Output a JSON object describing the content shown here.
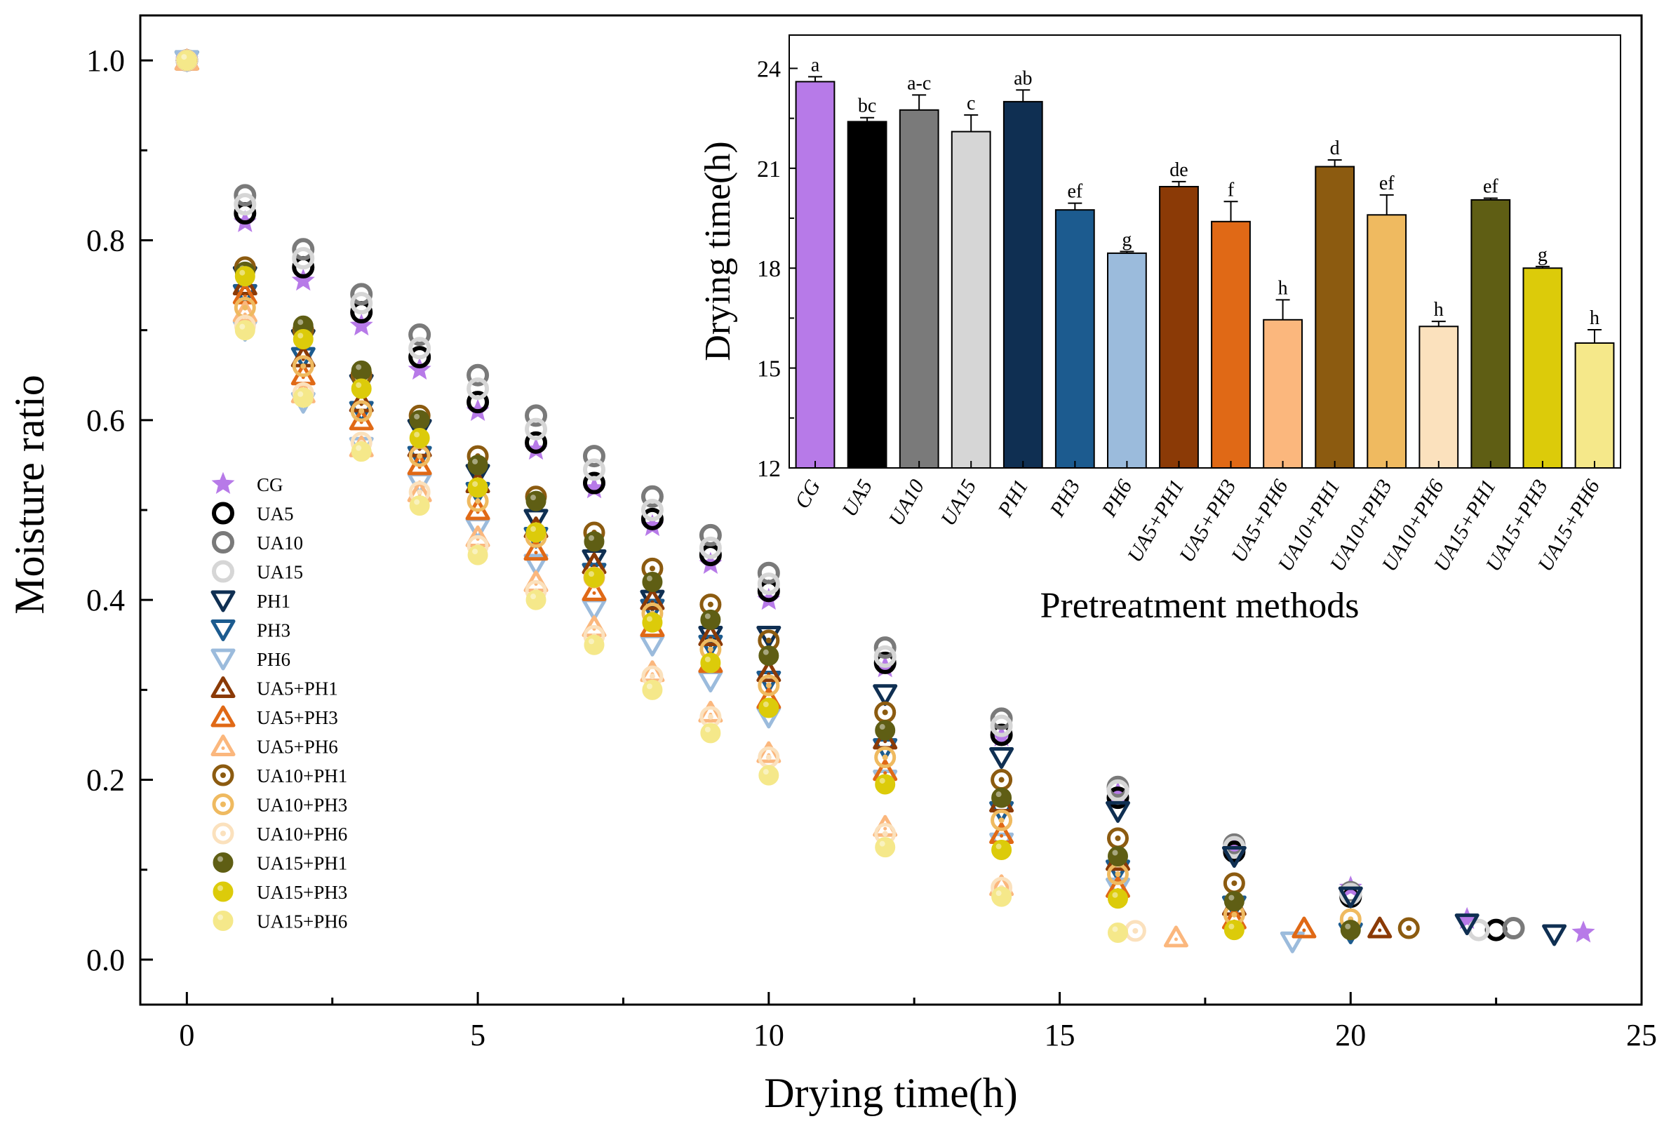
{
  "colors": {
    "CG": "#b77ae8",
    "UA5": "#000000",
    "UA10": "#7a7a7a",
    "UA15": "#d6d6d6",
    "PH1": "#0f2f52",
    "PH3": "#1c5b8f",
    "PH6": "#9bbbdc",
    "UA5+PH1": "#8b3a06",
    "UA5+PH3": "#e06916",
    "UA5+PH6": "#fbb77d",
    "UA10+PH1": "#8c5b10",
    "UA10+PH3": "#efba60",
    "UA10+PH6": "#fbe1bd",
    "UA15+PH1": "#5f5e14",
    "UA15+PH3": "#dccb0a",
    "UA15+PH6": "#f5e88a"
  },
  "chart_data": [
    {
      "type": "scatter",
      "title": "",
      "xlabel": "Drying time(h)",
      "ylabel": "Moisture ratio",
      "xlim": [
        -0.8,
        25
      ],
      "ylim": [
        -0.05,
        1.05
      ],
      "xticks": [
        "0",
        "5",
        "10",
        "15",
        "20",
        "25"
      ],
      "yticks": [
        "0.0",
        "0.2",
        "0.4",
        "0.6",
        "0.8",
        "1.0"
      ],
      "legend_position": "left-middle",
      "series": [
        {
          "name": "CG",
          "marker": "star",
          "x": [
            0,
            1,
            2,
            3,
            4,
            5,
            6,
            7,
            8,
            9,
            10,
            12,
            14,
            16,
            18,
            20,
            22,
            24
          ],
          "y": [
            1,
            0.82,
            0.755,
            0.705,
            0.656,
            0.61,
            0.567,
            0.524,
            0.482,
            0.44,
            0.4,
            0.325,
            0.248,
            0.185,
            0.125,
            0.08,
            0.045,
            0.03
          ]
        },
        {
          "name": "UA5",
          "marker": "circle",
          "x": [
            0,
            1,
            2,
            3,
            4,
            5,
            6,
            7,
            8,
            9,
            10,
            12,
            14,
            16,
            18,
            20,
            22.5
          ],
          "y": [
            1,
            0.83,
            0.77,
            0.72,
            0.67,
            0.62,
            0.575,
            0.53,
            0.49,
            0.45,
            0.41,
            0.33,
            0.25,
            0.18,
            0.12,
            0.07,
            0.033
          ]
        },
        {
          "name": "UA10",
          "marker": "circle",
          "x": [
            0,
            1,
            2,
            3,
            4,
            5,
            6,
            7,
            8,
            9,
            10,
            12,
            14,
            16,
            18,
            20,
            22.8
          ],
          "y": [
            1,
            0.85,
            0.79,
            0.74,
            0.695,
            0.65,
            0.605,
            0.56,
            0.515,
            0.472,
            0.43,
            0.347,
            0.268,
            0.192,
            0.128,
            0.075,
            0.035
          ]
        },
        {
          "name": "UA15",
          "marker": "circle",
          "x": [
            0,
            1,
            2,
            3,
            4,
            5,
            6,
            7,
            8,
            9,
            10,
            12,
            14,
            16,
            18,
            20,
            22.2
          ],
          "y": [
            1,
            0.84,
            0.78,
            0.73,
            0.68,
            0.635,
            0.59,
            0.545,
            0.5,
            0.458,
            0.418,
            0.337,
            0.26,
            0.188,
            0.125,
            0.073,
            0.033
          ]
        },
        {
          "name": "PH1",
          "marker": "triangle-down",
          "x": [
            0,
            1,
            2,
            3,
            4,
            5,
            6,
            7,
            8,
            9,
            10,
            12,
            14,
            16,
            18,
            20,
            22,
            23.5
          ],
          "y": [
            1,
            0.76,
            0.69,
            0.64,
            0.59,
            0.54,
            0.49,
            0.445,
            0.4,
            0.36,
            0.36,
            0.295,
            0.225,
            0.165,
            0.115,
            0.07,
            0.04,
            0.028
          ]
        },
        {
          "name": "PH3",
          "marker": "triangle-down",
          "x": [
            0,
            1,
            2,
            3,
            4,
            5,
            6,
            7,
            8,
            9,
            10,
            12,
            14,
            16,
            18,
            20
          ],
          "y": [
            1,
            0.74,
            0.67,
            0.61,
            0.56,
            0.52,
            0.47,
            0.43,
            0.39,
            0.35,
            0.31,
            0.235,
            0.165,
            0.1,
            0.06,
            0.03
          ]
        },
        {
          "name": "PH6",
          "marker": "triangle-down",
          "x": [
            0,
            1,
            2,
            3,
            4,
            5,
            6,
            7,
            8,
            9,
            10,
            12,
            14,
            16,
            19
          ],
          "y": [
            1,
            0.7,
            0.62,
            0.57,
            0.53,
            0.48,
            0.44,
            0.39,
            0.35,
            0.31,
            0.27,
            0.2,
            0.13,
            0.08,
            0.02
          ]
        },
        {
          "name": "UA5+PH1",
          "marker": "triangle-up",
          "x": [
            0,
            1,
            2,
            3,
            4,
            5,
            6,
            7,
            8,
            9,
            10,
            12,
            14,
            16,
            18,
            20.5
          ],
          "y": [
            1,
            0.75,
            0.67,
            0.62,
            0.57,
            0.53,
            0.48,
            0.44,
            0.4,
            0.36,
            0.32,
            0.245,
            0.175,
            0.11,
            0.06,
            0.035
          ]
        },
        {
          "name": "UA5+PH3",
          "marker": "triangle-up",
          "x": [
            0,
            1,
            2,
            3,
            4,
            5,
            6,
            7,
            8,
            9,
            10,
            12,
            14,
            16,
            18,
            19.2
          ],
          "y": [
            1,
            0.74,
            0.65,
            0.6,
            0.55,
            0.5,
            0.455,
            0.41,
            0.37,
            0.33,
            0.29,
            0.21,
            0.14,
            0.08,
            0.045,
            0.035
          ]
        },
        {
          "name": "UA5+PH6",
          "marker": "triangle-up",
          "x": [
            0,
            1,
            2,
            3,
            4,
            5,
            6,
            7,
            8,
            9,
            10,
            12,
            14,
            17
          ],
          "y": [
            1,
            0.72,
            0.63,
            0.57,
            0.52,
            0.47,
            0.42,
            0.37,
            0.32,
            0.275,
            0.23,
            0.148,
            0.082,
            0.025
          ]
        },
        {
          "name": "UA10+PH1",
          "marker": "ring",
          "x": [
            0,
            1,
            2,
            3,
            4,
            5,
            6,
            7,
            8,
            9,
            10,
            12,
            14,
            16,
            18,
            21
          ],
          "y": [
            1,
            0.77,
            0.7,
            0.65,
            0.605,
            0.56,
            0.515,
            0.475,
            0.435,
            0.395,
            0.355,
            0.275,
            0.2,
            0.135,
            0.085,
            0.035
          ]
        },
        {
          "name": "UA10+PH3",
          "marker": "ring",
          "x": [
            0,
            1,
            2,
            3,
            4,
            5,
            6,
            7,
            8,
            9,
            10,
            12,
            14,
            16,
            18,
            20
          ],
          "y": [
            1,
            0.725,
            0.66,
            0.61,
            0.56,
            0.51,
            0.47,
            0.425,
            0.385,
            0.345,
            0.305,
            0.225,
            0.155,
            0.095,
            0.05,
            0.045
          ]
        },
        {
          "name": "UA10+PH6",
          "marker": "ring",
          "x": [
            0,
            1,
            2,
            3,
            4,
            5,
            6,
            7,
            8,
            9,
            10,
            12,
            14,
            16.3
          ],
          "y": [
            1,
            0.705,
            0.63,
            0.575,
            0.52,
            0.46,
            0.41,
            0.36,
            0.315,
            0.27,
            0.225,
            0.14,
            0.08,
            0.032
          ]
        },
        {
          "name": "UA15+PH1",
          "marker": "ball",
          "x": [
            0,
            1,
            2,
            3,
            4,
            5,
            6,
            7,
            8,
            9,
            10,
            12,
            14,
            16,
            18,
            20
          ],
          "y": [
            1,
            0.765,
            0.705,
            0.655,
            0.6,
            0.55,
            0.51,
            0.465,
            0.42,
            0.378,
            0.338,
            0.255,
            0.18,
            0.115,
            0.065,
            0.033
          ]
        },
        {
          "name": "UA15+PH3",
          "marker": "ball",
          "x": [
            0,
            1,
            2,
            3,
            4,
            5,
            6,
            7,
            8,
            9,
            10,
            12,
            14,
            16,
            18
          ],
          "y": [
            1,
            0.76,
            0.69,
            0.635,
            0.58,
            0.525,
            0.475,
            0.425,
            0.375,
            0.33,
            0.28,
            0.195,
            0.122,
            0.068,
            0.033
          ]
        },
        {
          "name": "UA15+PH6",
          "marker": "ball",
          "x": [
            0,
            1,
            2,
            3,
            4,
            5,
            6,
            7,
            8,
            9,
            10,
            12,
            14,
            16
          ],
          "y": [
            1,
            0.7,
            0.625,
            0.565,
            0.505,
            0.45,
            0.4,
            0.35,
            0.3,
            0.252,
            0.205,
            0.125,
            0.07,
            0.03
          ]
        }
      ]
    },
    {
      "type": "bar",
      "title": "",
      "xlabel": "Pretreatment methods",
      "ylabel": "Drying time(h)",
      "ylim": [
        12,
        25
      ],
      "yticks": [
        "12",
        "15",
        "18",
        "21",
        "24"
      ],
      "legend_position": "none",
      "categories": [
        "CG",
        "UA5",
        "UA10",
        "UA15",
        "PH1",
        "PH3",
        "PH6",
        "UA5+PH1",
        "UA5+PH3",
        "UA5+PH6",
        "UA10+PH1",
        "UA10+PH3",
        "UA10+PH6",
        "UA15+PH1",
        "UA15+PH3",
        "UA15+PH6"
      ],
      "values": [
        23.6,
        22.4,
        22.75,
        22.1,
        23.0,
        19.75,
        18.45,
        20.45,
        19.4,
        16.45,
        21.05,
        19.6,
        16.25,
        20.05,
        18.0,
        15.75
      ],
      "errors": [
        0.15,
        0.12,
        0.45,
        0.5,
        0.35,
        0.2,
        0.05,
        0.15,
        0.6,
        0.6,
        0.2,
        0.6,
        0.15,
        0.05,
        0.05,
        0.4
      ],
      "significance": [
        "a",
        "bc",
        "a-c",
        "c",
        "ab",
        "ef",
        "g",
        "de",
        "f",
        "h",
        "d",
        "ef",
        "h",
        "ef",
        "g",
        "h"
      ]
    }
  ]
}
